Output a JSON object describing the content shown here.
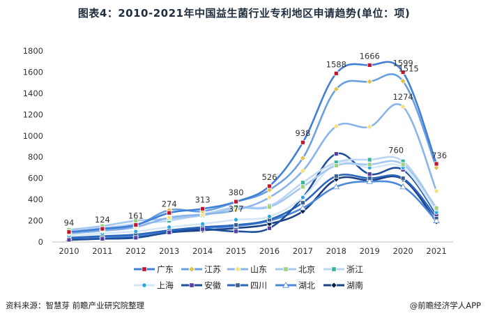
{
  "title": "图表4：2010-2021年中国益生菌行业专利地区申请趋势(单位：项)",
  "source": "资料来源：智慧芽 前瞻产业研究院整理",
  "brand": "@前瞻经济学人APP",
  "chart_data": {
    "type": "line",
    "title": "图表4：2010-2021年中国益生菌行业专利地区申请趋势(单位：项)",
    "xlabel": "",
    "ylabel": "",
    "ylim": [
      0,
      1800
    ],
    "yticks": [
      0,
      200,
      400,
      600,
      800,
      1000,
      1200,
      1400,
      1600,
      1800
    ],
    "x": [
      "2010",
      "2011",
      "2012",
      "2013",
      "2014",
      "2015",
      "2016",
      "2017",
      "2018",
      "2019",
      "2020",
      "2021"
    ],
    "grid": false,
    "legend_position": "bottom",
    "series": [
      {
        "name": "广东",
        "color": "#3f7fd6",
        "marker": "square",
        "markerColor": "#c0142d",
        "width": 2.6,
        "values": [
          94,
          124,
          161,
          274,
          313,
          380,
          526,
          938,
          1588,
          1666,
          1599,
          736
        ]
      },
      {
        "name": "江苏",
        "color": "#6a9fe0",
        "marker": "diamond",
        "markerColor": "#e0c24a",
        "width": 2.6,
        "values": [
          90,
          118,
          155,
          300,
          290,
          377,
          490,
          790,
          1440,
          1510,
          1515,
          700
        ]
      },
      {
        "name": "山东",
        "color": "#8ab4ea",
        "marker": "diamond",
        "markerColor": "#f4e27a",
        "width": 2.6,
        "values": [
          80,
          105,
          140,
          230,
          260,
          300,
          420,
          670,
          1090,
          1085,
          1274,
          480
        ]
      },
      {
        "name": "北京",
        "color": "#a4c8f0",
        "marker": "square",
        "markerColor": "#9fd27f",
        "width": 2.6,
        "values": [
          115,
          150,
          200,
          220,
          250,
          320,
          330,
          520,
          720,
          730,
          730,
          320
        ]
      },
      {
        "name": "浙江",
        "color": "#bcd6f4",
        "marker": "square",
        "markerColor": "#37b59a",
        "width": 2.6,
        "values": [
          100,
          130,
          170,
          200,
          260,
          330,
          340,
          560,
          750,
          775,
          760,
          310
        ]
      },
      {
        "name": "上海",
        "color": "#d4e6f8",
        "marker": "circle",
        "markerColor": "#2aa7e0",
        "width": 2.6,
        "values": [
          60,
          80,
          100,
          140,
          170,
          210,
          240,
          420,
          740,
          700,
          700,
          280
        ]
      },
      {
        "name": "安徽",
        "color": "#1d4f9e",
        "marker": "square",
        "markerColor": "#5a3ca0",
        "width": 2.6,
        "values": [
          20,
          30,
          40,
          90,
          120,
          100,
          130,
          420,
          830,
          640,
          680,
          260
        ]
      },
      {
        "name": "四川",
        "color": "#2b66bd",
        "marker": "square",
        "markerColor": "#3d5f8a",
        "width": 2.6,
        "values": [
          40,
          55,
          70,
          110,
          140,
          160,
          210,
          370,
          620,
          600,
          600,
          230
        ]
      },
      {
        "name": "湖北",
        "color": "#4c87d9",
        "marker": "triangle",
        "markerColor": "#ffffff",
        "width": 2.6,
        "values": [
          30,
          45,
          60,
          100,
          130,
          150,
          200,
          320,
          520,
          570,
          520,
          200
        ]
      },
      {
        "name": "湖南",
        "color": "#1a3f85",
        "marker": "diamond",
        "markerColor": "#0a1e4a",
        "width": 2.6,
        "values": [
          25,
          40,
          50,
          90,
          110,
          130,
          170,
          290,
          590,
          580,
          590,
          190
        ]
      }
    ],
    "annotations": [
      {
        "series": "广东",
        "x": "2010",
        "label": "94"
      },
      {
        "series": "广东",
        "x": "2011",
        "label": "124"
      },
      {
        "series": "广东",
        "x": "2012",
        "label": "161"
      },
      {
        "series": "广东",
        "x": "2013",
        "label": "274"
      },
      {
        "series": "广东",
        "x": "2014",
        "label": "313"
      },
      {
        "series": "广东",
        "x": "2015",
        "label": "380"
      },
      {
        "series": "广东",
        "x": "2016",
        "label": "526"
      },
      {
        "series": "广东",
        "x": "2017",
        "label": "938"
      },
      {
        "series": "广东",
        "x": "2018",
        "label": "1588"
      },
      {
        "series": "广东",
        "x": "2019",
        "label": "1666"
      },
      {
        "series": "广东",
        "x": "2020",
        "label": "1599"
      },
      {
        "series": "广东",
        "x": "2021",
        "label": "736"
      },
      {
        "series": "江苏",
        "x": "2015",
        "label": "377"
      },
      {
        "series": "江苏",
        "x": "2020",
        "label": "1515"
      },
      {
        "series": "山东",
        "x": "2020",
        "label": "1274"
      },
      {
        "series": "浙江",
        "x": "2020",
        "label": "760"
      }
    ]
  }
}
